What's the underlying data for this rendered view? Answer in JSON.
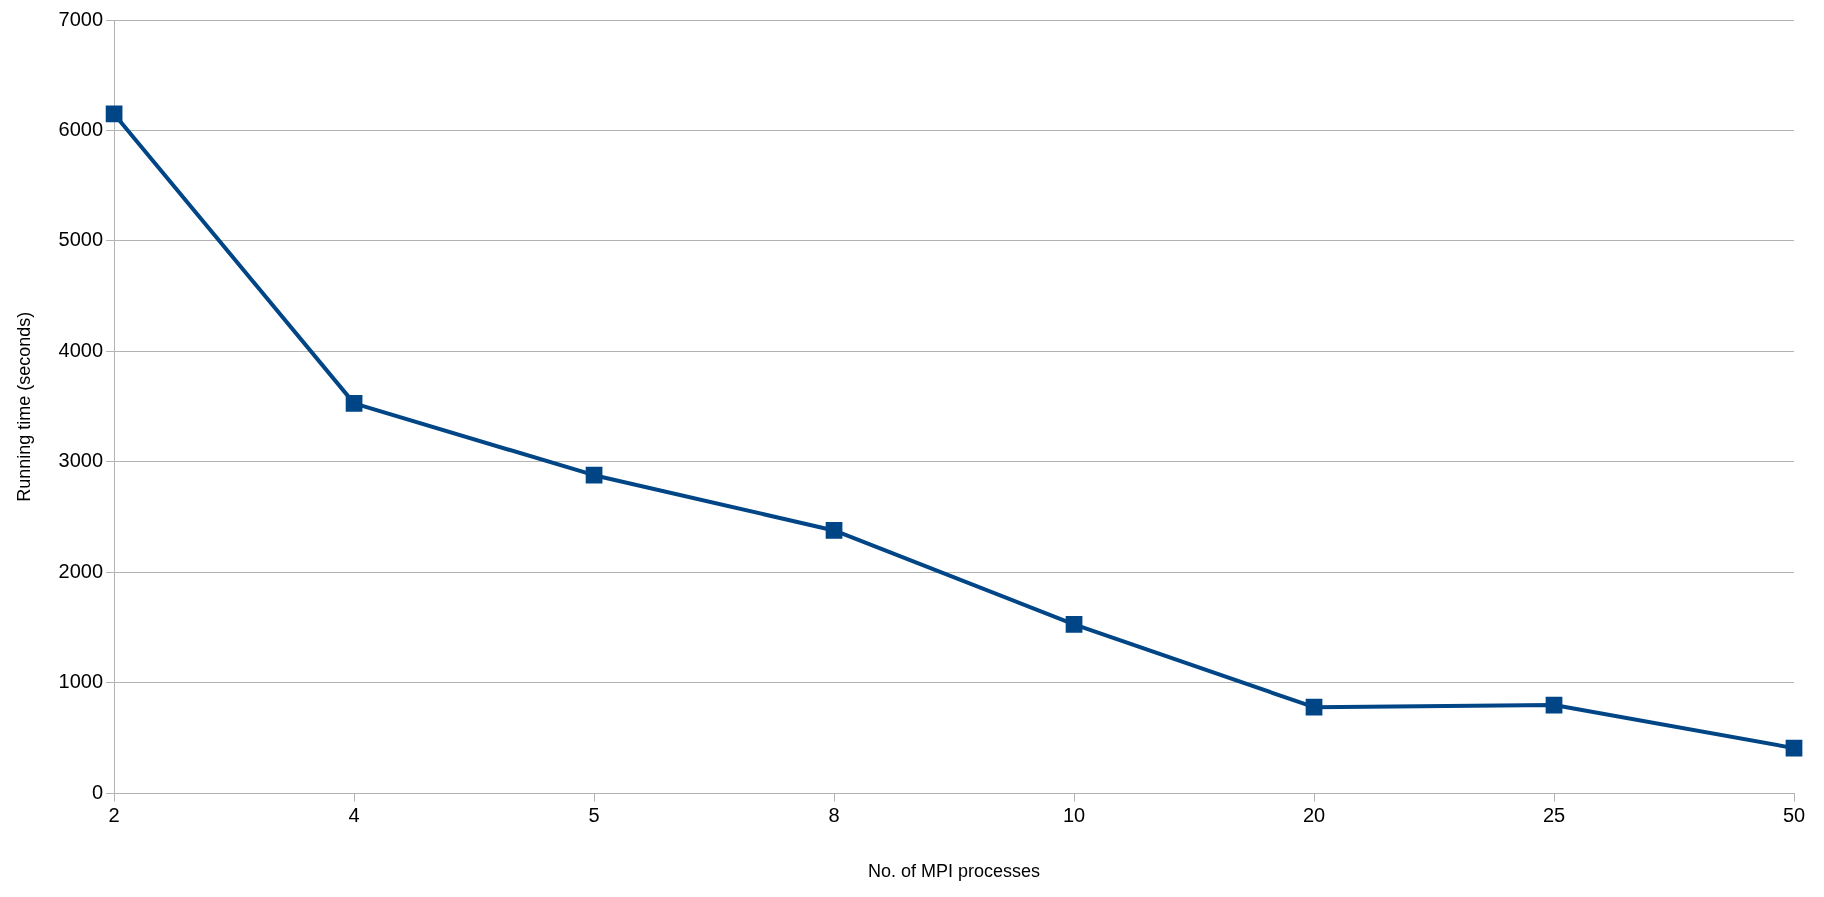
{
  "chart_data": {
    "type": "line",
    "xlabel": "No. of MPI processes",
    "ylabel": "Running time (seconds)",
    "categories": [
      "2",
      "4",
      "5",
      "8",
      "10",
      "20",
      "25",
      "50"
    ],
    "series": [
      {
        "color": "#004586",
        "values": [
          6150,
          3530,
          2880,
          2380,
          1530,
          780,
          800,
          410
        ]
      }
    ],
    "ylim": [
      0,
      7000
    ],
    "yticks": [
      0,
      1000,
      2000,
      3000,
      4000,
      5000,
      6000,
      7000
    ],
    "grid": "y",
    "marker": "square"
  }
}
